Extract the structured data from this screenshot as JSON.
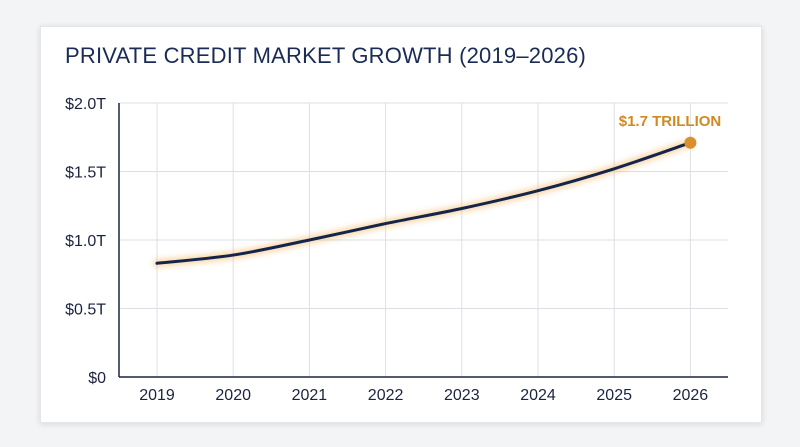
{
  "colors": {
    "line": "#15254a",
    "glow": "#f4b968",
    "accent": "#d9902c",
    "grid": "#dcdfe4",
    "axis": "#1c2340"
  },
  "chart_data": {
    "type": "line",
    "title": "PRIVATE CREDIT MARKET GROWTH (2019–2026)",
    "xlabel": "",
    "ylabel": "",
    "x": [
      "2019",
      "2020",
      "2021",
      "2022",
      "2023",
      "2024",
      "2025",
      "2026"
    ],
    "values": [
      0.83,
      0.89,
      1.0,
      1.12,
      1.23,
      1.36,
      1.52,
      1.71
    ],
    "ylim": [
      0,
      2.0
    ],
    "yticks": [
      0,
      0.5,
      1.0,
      1.5,
      2.0
    ],
    "ytick_labels": [
      "$0",
      "$0.5T",
      "$1.0T",
      "$1.5T",
      "$2.0T"
    ],
    "grid": true,
    "annotation": {
      "text": "$1.7 TRILLION",
      "x": "2026",
      "y": 1.71
    }
  }
}
